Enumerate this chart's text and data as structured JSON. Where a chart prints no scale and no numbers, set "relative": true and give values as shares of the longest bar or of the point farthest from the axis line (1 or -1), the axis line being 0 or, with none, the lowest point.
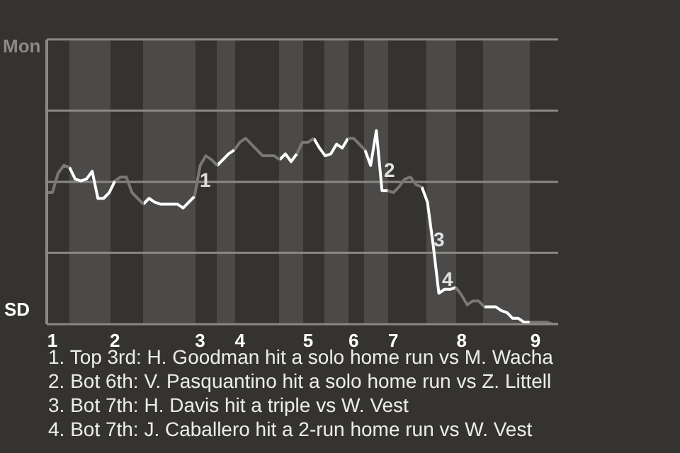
{
  "chart_data": {
    "type": "line",
    "relative": true,
    "categories": [
      null,
      "1",
      null,
      null,
      null,
      null,
      null,
      null,
      null,
      null,
      null,
      null,
      "2",
      null,
      null,
      null,
      null,
      null,
      null,
      null,
      null,
      null,
      null,
      null,
      null,
      null,
      null,
      "3",
      null,
      null,
      null,
      null,
      null,
      null,
      "4",
      null,
      null,
      null,
      null,
      null,
      null,
      null,
      null,
      null,
      null,
      null,
      "5",
      null,
      null,
      null,
      null,
      null,
      null,
      null,
      "6",
      null,
      null,
      null,
      null,
      null,
      null,
      "7",
      null,
      null,
      null,
      null,
      null,
      null,
      null,
      null,
      null,
      null,
      null,
      "8",
      null,
      null,
      null,
      null,
      null,
      null,
      null,
      null,
      null,
      null,
      null,
      null,
      "9",
      null,
      null,
      null,
      null
    ],
    "ref_lines": [
      {
        "axis": "y",
        "value": 0.368,
        "color": "#8a8886"
      },
      {
        "axis": "y",
        "value": 0.735,
        "color": "#8a8886"
      },
      {
        "axis": "y",
        "value": 1.103,
        "color": "#8a8886"
      },
      {
        "axis": "y",
        "value": 1.471,
        "color": "#8a8886"
      }
    ],
    "marker": "none",
    "line_style": "solid",
    "series": [
      {
        "color": "#7a7874",
        "values": [
          0.68,
          0.68,
          0.78,
          0.82,
          0.81,
          null,
          null,
          null,
          null,
          null,
          null,
          null,
          0.74,
          0.76,
          0.76,
          0.68,
          0.65,
          0.62,
          null,
          null,
          null,
          null,
          null,
          null,
          null,
          null,
          0.66,
          0.82,
          0.87,
          0.85,
          0.82,
          null,
          null,
          0.9,
          0.94,
          0.96,
          0.93,
          0.9,
          0.87,
          0.87,
          0.87,
          0.85,
          null,
          null,
          0.88,
          0.94,
          0.94,
          0.96,
          null,
          null,
          null,
          null,
          null,
          0.96,
          0.96,
          0.93,
          0.9,
          null,
          null,
          null,
          0.69,
          0.68,
          0.71,
          0.75,
          0.76,
          0.72,
          0.71,
          null,
          null,
          null,
          null,
          null,
          0.19,
          0.15,
          0.1,
          0.12,
          0.12,
          0.09,
          null,
          null,
          null,
          null,
          null,
          null,
          null,
          0.01,
          0.01,
          0.01,
          0.01,
          0,
          0
        ]
      },
      {
        "color": "#ffffff",
        "values": [
          null,
          null,
          null,
          null,
          0.81,
          0.75,
          0.74,
          0.75,
          0.79,
          0.65,
          0.65,
          0.68,
          0.74,
          null,
          null,
          null,
          null,
          0.62,
          0.65,
          0.63,
          0.62,
          0.62,
          0.62,
          0.62,
          0.6,
          0.63,
          0.66,
          null,
          null,
          null,
          0.82,
          0.85,
          0.88,
          0.9,
          null,
          null,
          null,
          null,
          null,
          null,
          null,
          0.85,
          0.88,
          0.84,
          0.88,
          null,
          null,
          0.96,
          0.91,
          0.87,
          0.88,
          0.93,
          0.91,
          0.96,
          null,
          null,
          0.9,
          0.82,
          1,
          0.69,
          0.69,
          null,
          null,
          null,
          null,
          null,
          0.71,
          0.63,
          0.41,
          0.16,
          0.18,
          0.18,
          0.19,
          null,
          null,
          null,
          null,
          0.09,
          0.09,
          0.09,
          0.07,
          0.06,
          0.03,
          0.03,
          0.01,
          0.01,
          null,
          null,
          null,
          null,
          null
        ]
      }
    ],
    "annotations": [
      "1",
      "2",
      "3",
      "4",
      "Mon",
      "SD",
      "1. Top 3rd: H. Goodman hit a solo home run vs M. Wacha",
      "2. Bot 6th: V. Pasquantino hit a solo home run vs Z. Littell",
      "3. Bot 7th: H. Davis hit a triple vs W. Vest",
      "4. Bot 7th: J. Caballero hit a 2-run home run vs W. Vest"
    ]
  }
}
